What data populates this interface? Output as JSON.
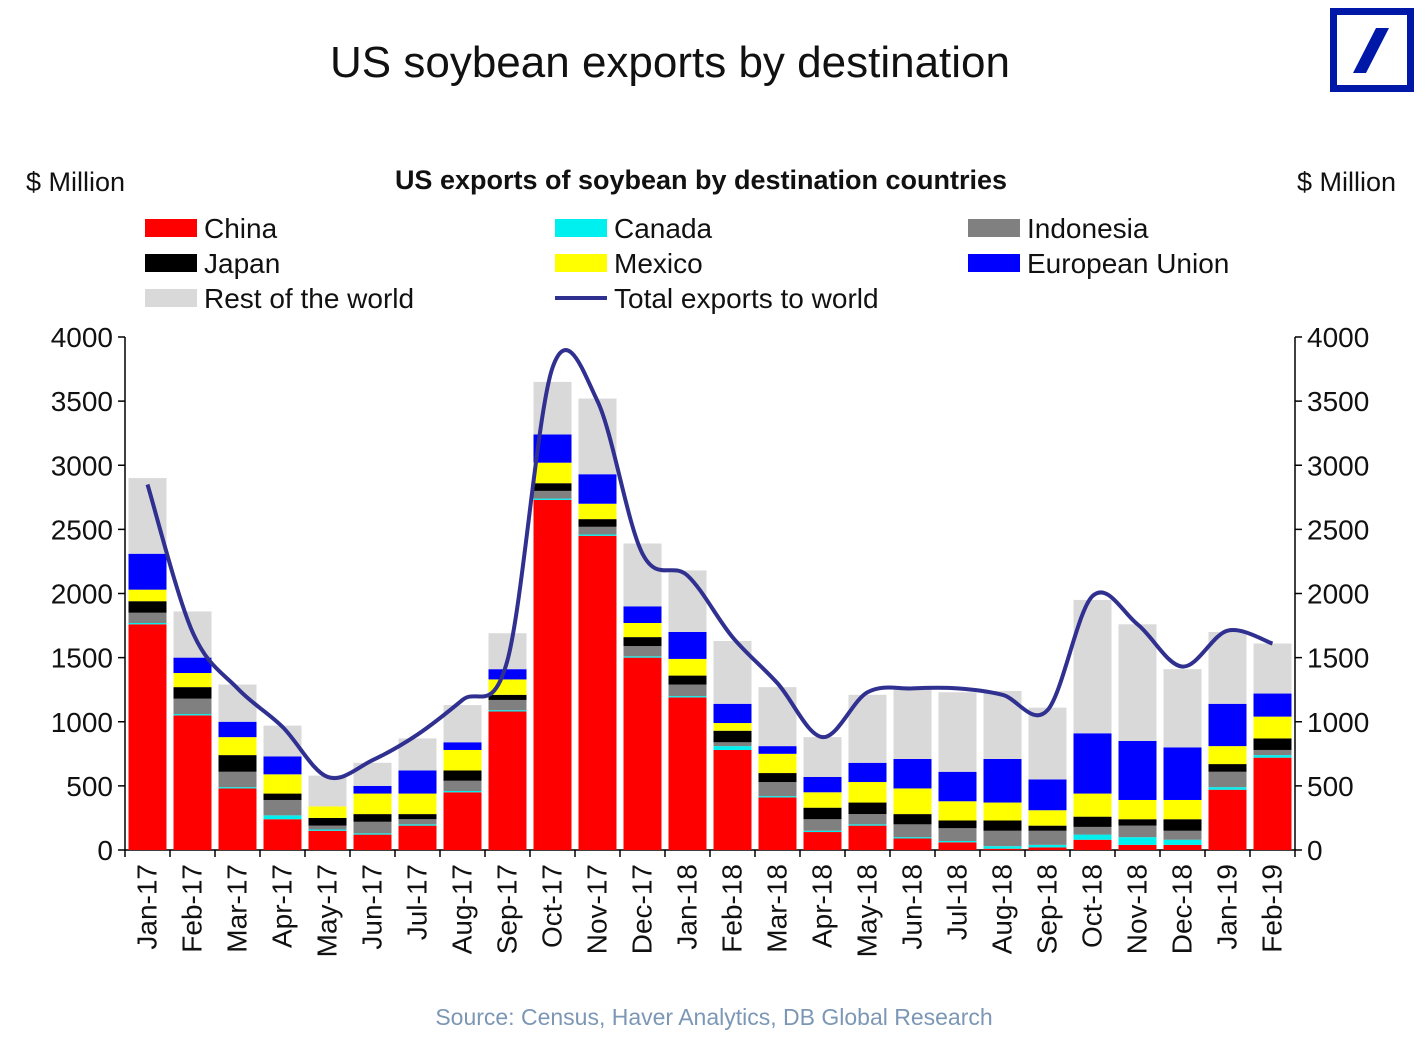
{
  "page": {
    "title": "US soybean exports by destination",
    "source": "Source: Census, Haver Analytics, DB Global Research"
  },
  "chart_data": {
    "type": "bar",
    "stacked": true,
    "title": "US exports of soybean by destination countries",
    "y_label_left": "$ Million",
    "y_label_right": "$ Million",
    "ylim": [
      0,
      4000
    ],
    "yticks": [
      0,
      500,
      1000,
      1500,
      2000,
      2500,
      3000,
      3500,
      4000
    ],
    "grid": false,
    "legend_position": "top",
    "categories": [
      "Jan-17",
      "Feb-17",
      "Mar-17",
      "Apr-17",
      "May-17",
      "Jun-17",
      "Jul-17",
      "Aug-17",
      "Sep-17",
      "Oct-17",
      "Nov-17",
      "Dec-17",
      "Jan-18",
      "Feb-18",
      "Mar-18",
      "Apr-18",
      "May-18",
      "Jun-18",
      "Jul-18",
      "Aug-18",
      "Sep-18",
      "Oct-18",
      "Nov-18",
      "Dec-18",
      "Jan-19",
      "Feb-19"
    ],
    "series": [
      {
        "name": "China",
        "kind": "bar",
        "color": "#ff0000",
        "values": [
          1760,
          1050,
          480,
          240,
          150,
          120,
          190,
          450,
          1080,
          2730,
          2450,
          1500,
          1190,
          780,
          410,
          140,
          190,
          90,
          60,
          10,
          20,
          80,
          40,
          40,
          470,
          720
        ]
      },
      {
        "name": "Canada",
        "kind": "bar",
        "color": "#00f0f0",
        "values": [
          10,
          10,
          10,
          30,
          10,
          10,
          10,
          10,
          10,
          10,
          10,
          10,
          10,
          30,
          10,
          10,
          10,
          10,
          10,
          20,
          20,
          40,
          60,
          40,
          20,
          20
        ]
      },
      {
        "name": "Indonesia",
        "kind": "bar",
        "color": "#808080",
        "values": [
          80,
          120,
          120,
          120,
          30,
          90,
          40,
          80,
          80,
          60,
          60,
          80,
          90,
          30,
          110,
          90,
          80,
          100,
          100,
          120,
          110,
          60,
          90,
          70,
          120,
          40
        ]
      },
      {
        "name": "Japan",
        "kind": "bar",
        "color": "#000000",
        "values": [
          90,
          90,
          130,
          50,
          60,
          60,
          40,
          80,
          40,
          60,
          60,
          70,
          70,
          90,
          70,
          90,
          90,
          80,
          60,
          80,
          40,
          80,
          50,
          90,
          60,
          90
        ]
      },
      {
        "name": "Mexico",
        "kind": "bar",
        "color": "#ffff00",
        "values": [
          90,
          110,
          140,
          150,
          90,
          160,
          160,
          160,
          120,
          160,
          120,
          110,
          130,
          60,
          150,
          120,
          160,
          200,
          150,
          140,
          120,
          180,
          150,
          150,
          140,
          170
        ]
      },
      {
        "name": "European Union",
        "kind": "bar",
        "color": "#0000ff",
        "values": [
          280,
          120,
          120,
          140,
          0,
          60,
          180,
          60,
          80,
          220,
          230,
          130,
          210,
          150,
          60,
          120,
          150,
          230,
          230,
          340,
          240,
          470,
          460,
          410,
          330,
          180
        ]
      },
      {
        "name": "Rest of the world",
        "kind": "bar",
        "color": "#d9d9d9",
        "values": [
          590,
          360,
          290,
          240,
          240,
          180,
          250,
          290,
          280,
          410,
          590,
          490,
          480,
          490,
          460,
          310,
          530,
          560,
          620,
          530,
          560,
          1040,
          910,
          610,
          560,
          390
        ]
      },
      {
        "name": "Total exports to world",
        "kind": "line",
        "color": "#303090",
        "values": [
          2850,
          1700,
          1260,
          960,
          570,
          700,
          900,
          1170,
          1480,
          3760,
          3500,
          2310,
          2140,
          1660,
          1300,
          880,
          1230,
          1260,
          1260,
          1210,
          1090,
          1980,
          1760,
          1430,
          1710,
          1610
        ]
      }
    ]
  }
}
